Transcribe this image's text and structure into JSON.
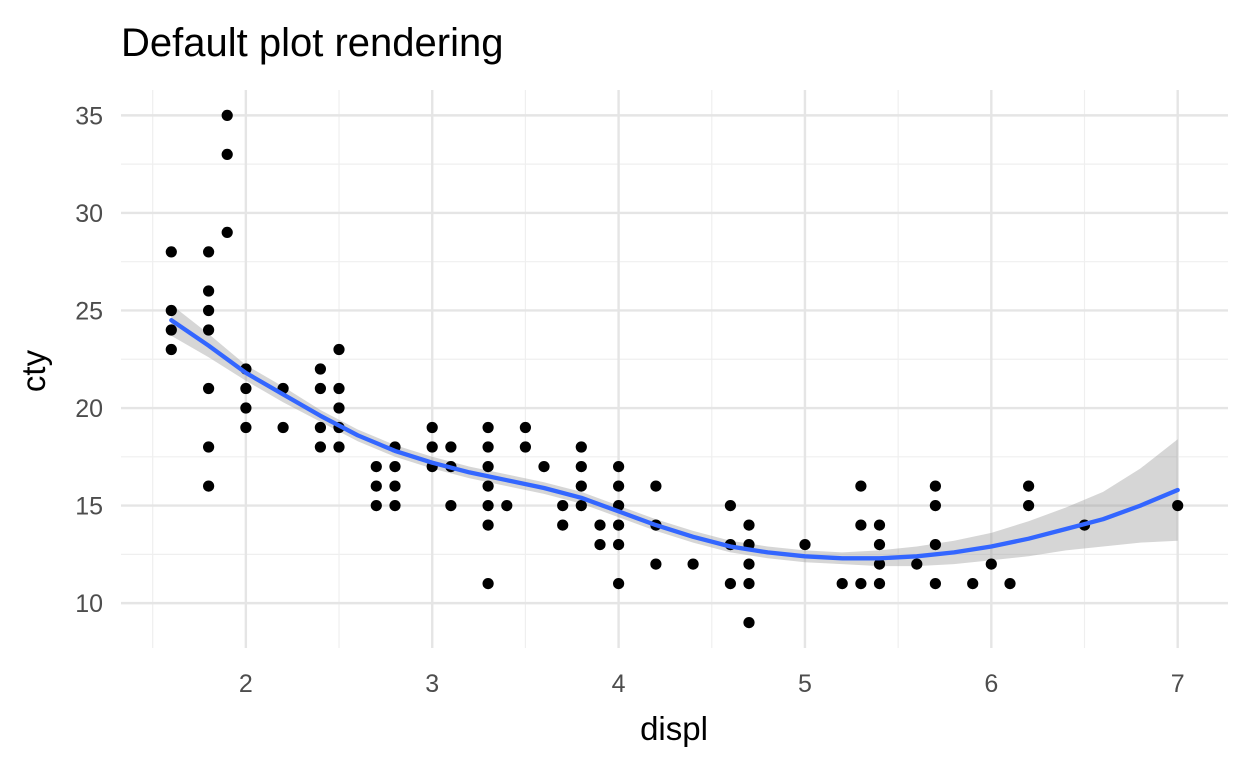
{
  "chart_data": {
    "type": "scatter",
    "title": "Default plot rendering",
    "subtitle": "",
    "xlabel": "displ",
    "ylabel": "cty",
    "xlim": [
      1.33,
      7.27
    ],
    "ylim": [
      7.7,
      36.3
    ],
    "x_ticks": [
      2,
      3,
      4,
      5,
      6,
      7
    ],
    "y_ticks": [
      10,
      15,
      20,
      25,
      30,
      35
    ],
    "x_tick_labels": [
      "2",
      "3",
      "4",
      "5",
      "6",
      "7"
    ],
    "y_tick_labels": [
      "10",
      "15",
      "20",
      "25",
      "30",
      "35"
    ],
    "x_minor_ticks": [
      1.5,
      2.5,
      3.5,
      4.5,
      5.5,
      6.5
    ],
    "y_minor_ticks": [
      12.5,
      17.5,
      22.5,
      27.5,
      32.5
    ],
    "grid": true,
    "legend": "none",
    "colors": {
      "point": "#000000",
      "smooth_line": "#3366FF",
      "confidence_band": "#999999"
    },
    "points": [
      [
        1.6,
        28
      ],
      [
        1.6,
        25
      ],
      [
        1.6,
        24
      ],
      [
        1.6,
        23
      ],
      [
        1.8,
        28
      ],
      [
        1.8,
        26
      ],
      [
        1.8,
        25
      ],
      [
        1.8,
        24
      ],
      [
        1.8,
        21
      ],
      [
        1.8,
        18
      ],
      [
        1.8,
        16
      ],
      [
        1.9,
        35
      ],
      [
        1.9,
        33
      ],
      [
        1.9,
        29
      ],
      [
        2.0,
        22
      ],
      [
        2.0,
        21
      ],
      [
        2.0,
        20
      ],
      [
        2.0,
        19
      ],
      [
        2.2,
        21
      ],
      [
        2.2,
        19
      ],
      [
        2.4,
        22
      ],
      [
        2.4,
        21
      ],
      [
        2.4,
        19
      ],
      [
        2.4,
        18
      ],
      [
        2.5,
        23
      ],
      [
        2.5,
        21
      ],
      [
        2.5,
        20
      ],
      [
        2.5,
        19
      ],
      [
        2.5,
        18
      ],
      [
        2.7,
        17
      ],
      [
        2.7,
        16
      ],
      [
        2.7,
        15
      ],
      [
        2.8,
        18
      ],
      [
        2.8,
        17
      ],
      [
        2.8,
        16
      ],
      [
        2.8,
        15
      ],
      [
        3.0,
        19
      ],
      [
        3.0,
        18
      ],
      [
        3.0,
        17
      ],
      [
        3.1,
        18
      ],
      [
        3.1,
        17
      ],
      [
        3.1,
        15
      ],
      [
        3.3,
        19
      ],
      [
        3.3,
        18
      ],
      [
        3.3,
        17
      ],
      [
        3.3,
        16
      ],
      [
        3.3,
        15
      ],
      [
        3.3,
        14
      ],
      [
        3.3,
        11
      ],
      [
        3.4,
        15
      ],
      [
        3.5,
        19
      ],
      [
        3.5,
        18
      ],
      [
        3.6,
        17
      ],
      [
        3.7,
        15
      ],
      [
        3.7,
        14
      ],
      [
        3.8,
        18
      ],
      [
        3.8,
        17
      ],
      [
        3.8,
        16
      ],
      [
        3.8,
        15
      ],
      [
        3.9,
        14
      ],
      [
        3.9,
        13
      ],
      [
        4.0,
        17
      ],
      [
        4.0,
        16
      ],
      [
        4.0,
        15
      ],
      [
        4.0,
        14
      ],
      [
        4.0,
        13
      ],
      [
        4.0,
        11
      ],
      [
        4.2,
        16
      ],
      [
        4.2,
        14
      ],
      [
        4.2,
        12
      ],
      [
        4.4,
        12
      ],
      [
        4.6,
        15
      ],
      [
        4.6,
        13
      ],
      [
        4.6,
        11
      ],
      [
        4.7,
        14
      ],
      [
        4.7,
        13
      ],
      [
        4.7,
        12
      ],
      [
        4.7,
        11
      ],
      [
        4.7,
        9
      ],
      [
        5.0,
        13
      ],
      [
        5.2,
        11
      ],
      [
        5.3,
        16
      ],
      [
        5.3,
        14
      ],
      [
        5.3,
        11
      ],
      [
        5.4,
        14
      ],
      [
        5.4,
        13
      ],
      [
        5.4,
        12
      ],
      [
        5.4,
        11
      ],
      [
        5.6,
        12
      ],
      [
        5.7,
        16
      ],
      [
        5.7,
        15
      ],
      [
        5.7,
        13
      ],
      [
        5.7,
        11
      ],
      [
        5.9,
        11
      ],
      [
        6.0,
        12
      ],
      [
        6.1,
        11
      ],
      [
        6.2,
        16
      ],
      [
        6.2,
        15
      ],
      [
        6.5,
        14
      ],
      [
        7.0,
        15
      ]
    ],
    "smooth": {
      "method": "loess",
      "x": [
        1.6,
        1.8,
        2.0,
        2.2,
        2.4,
        2.6,
        2.8,
        3.0,
        3.2,
        3.4,
        3.6,
        3.8,
        4.0,
        4.2,
        4.4,
        4.6,
        4.8,
        5.0,
        5.2,
        5.4,
        5.6,
        5.8,
        6.0,
        6.2,
        6.4,
        6.6,
        6.8,
        7.0
      ],
      "y": [
        24.5,
        23.2,
        21.8,
        20.7,
        19.6,
        18.6,
        17.8,
        17.2,
        16.7,
        16.3,
        15.9,
        15.4,
        14.7,
        14.0,
        13.4,
        12.9,
        12.6,
        12.4,
        12.3,
        12.3,
        12.4,
        12.6,
        12.9,
        13.3,
        13.8,
        14.3,
        15.0,
        15.8
      ],
      "lower": [
        23.7,
        22.6,
        21.4,
        20.3,
        19.3,
        18.3,
        17.5,
        16.9,
        16.4,
        16.0,
        15.6,
        15.1,
        14.4,
        13.7,
        13.1,
        12.6,
        12.3,
        12.1,
        12.0,
        11.9,
        11.9,
        12.0,
        12.2,
        12.4,
        12.7,
        12.9,
        13.1,
        13.2
      ],
      "upper": [
        25.3,
        23.8,
        22.2,
        21.1,
        19.9,
        18.9,
        18.1,
        17.5,
        17.0,
        16.6,
        16.2,
        15.7,
        15.0,
        14.3,
        13.7,
        13.2,
        12.9,
        12.7,
        12.6,
        12.7,
        12.9,
        13.2,
        13.6,
        14.2,
        14.9,
        15.7,
        16.9,
        18.4
      ]
    }
  }
}
